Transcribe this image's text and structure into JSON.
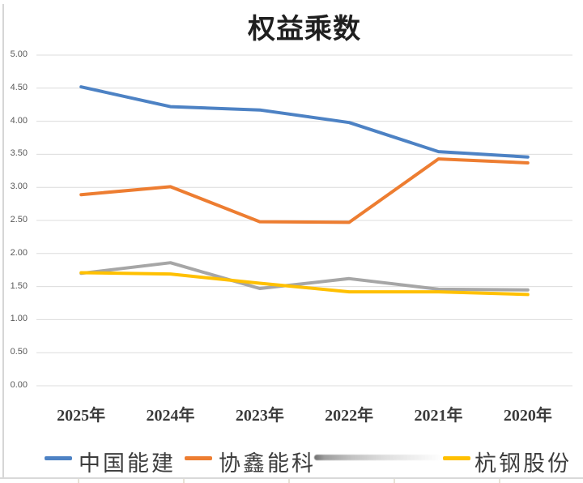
{
  "window": {
    "background": "#ffffff",
    "border_color": "#d9d9d9"
  },
  "chart": {
    "title": "权益乘数"
  },
  "chart_data": {
    "type": "line",
    "title": "权益乘数",
    "categories": [
      "2025年",
      "2024年",
      "2023年",
      "2022年",
      "2021年",
      "2020年"
    ],
    "series": [
      {
        "name": "中国能建",
        "color": "#4D82C4",
        "values": [
          4.52,
          4.22,
          4.17,
          3.98,
          3.54,
          3.46
        ]
      },
      {
        "name": "协鑫能科",
        "color": "#ED7D31",
        "values": [
          2.89,
          3.01,
          2.48,
          2.47,
          3.43,
          3.37
        ]
      },
      {
        "name": "",
        "color": "#A6A6A6",
        "values": [
          1.7,
          1.86,
          1.47,
          1.62,
          1.46,
          1.45
        ]
      },
      {
        "name": "杭钢股份",
        "color": "#FFC000",
        "values": [
          1.71,
          1.69,
          1.55,
          1.42,
          1.42,
          1.38
        ]
      }
    ],
    "y_axis": {
      "min": 0,
      "max": 5,
      "step": 0.5,
      "ticks": [
        "5.00",
        "4.50",
        "4.00",
        "3.50",
        "3.00",
        "2.50",
        "2.00",
        "1.50",
        "1.00",
        "0.50",
        "0.00"
      ]
    },
    "x_axis": {
      "label": ""
    },
    "grid": true,
    "legend_position": "bottom",
    "colors": {
      "gridline": "#dcdcdc",
      "title_text": "#1f1f1f",
      "axis_tick_text": "#595959",
      "category_text": "#3a3a3a",
      "legend_text": "#3d3d3d"
    }
  },
  "legend": {
    "items": [
      {
        "label": "中国能建",
        "color": "#4D82C4"
      },
      {
        "label": "协鑫能科",
        "color": "#ED7D31"
      },
      {
        "label": "杭钢股份",
        "color": "#FFC000"
      }
    ],
    "smudged_entry": {
      "series_color": "#A6A6A6",
      "note": "legend text scribbled out"
    }
  }
}
